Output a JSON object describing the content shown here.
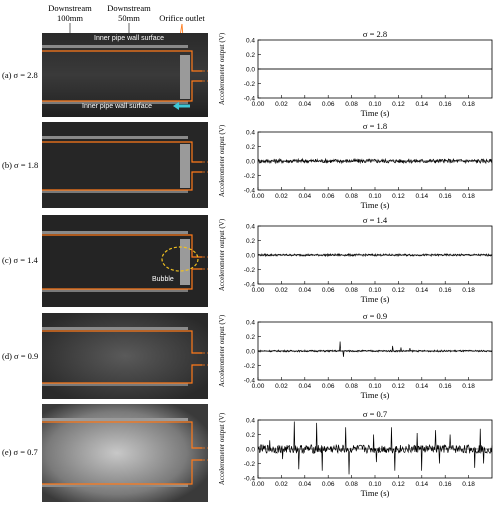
{
  "header": {
    "downstream_100": "Downstream\n100mm",
    "downstream_50": "Downstream\n50mm",
    "orifice_outlet": "Orifice outlet"
  },
  "photo_labels": {
    "inner_wall_top": "Inner pipe wall surface",
    "inner_wall_bottom": "Inner pipe wall surface",
    "bubble": "Bubble"
  },
  "rows": [
    {
      "label": "(a) σ = 2.8"
    },
    {
      "label": "(b) σ = 1.8"
    },
    {
      "label": "(c) σ = 1.4"
    },
    {
      "label": "(d) σ = 0.9"
    },
    {
      "label": "(e) σ = 0.7"
    }
  ],
  "chart_data": [
    {
      "type": "line",
      "title": "σ = 2.8",
      "xlabel": "Time (s)",
      "ylabel": "Accelerometer output (V)",
      "xlim": [
        0,
        0.2
      ],
      "ylim": [
        -0.4,
        0.4
      ],
      "xticks": [
        "0.00",
        "0.02",
        "0.04",
        "0.06",
        "0.08",
        "0.10",
        "0.12",
        "0.14",
        "0.16",
        "0.18"
      ],
      "yticks": [
        "0.4",
        "0.2",
        "0.0",
        "-0.2",
        "-0.4"
      ],
      "series": [
        {
          "amplitude": 0.0,
          "spikes": []
        }
      ]
    },
    {
      "type": "line",
      "title": "σ = 1.8",
      "xlabel": "Time (s)",
      "ylabel": "Accelerometer output (V)",
      "xlim": [
        0,
        0.2
      ],
      "ylim": [
        -0.4,
        0.4
      ],
      "xticks": [
        "0.00",
        "0.02",
        "0.04",
        "0.06",
        "0.08",
        "0.10",
        "0.12",
        "0.14",
        "0.16",
        "0.18"
      ],
      "yticks": [
        "0.4",
        "0.2",
        "0.0",
        "-0.2",
        "-0.4"
      ],
      "series": [
        {
          "amplitude": 0.03,
          "spikes": []
        }
      ]
    },
    {
      "type": "line",
      "title": "σ = 1.4",
      "xlabel": "Time (s)",
      "ylabel": "Accelerometer output (V)",
      "xlim": [
        0,
        0.2
      ],
      "ylim": [
        -0.4,
        0.4
      ],
      "xticks": [
        "0.00",
        "0.02",
        "0.04",
        "0.06",
        "0.08",
        "0.10",
        "0.12",
        "0.14",
        "0.16",
        "0.18"
      ],
      "yticks": [
        "0.4",
        "0.2",
        "0.0",
        "-0.2",
        "-0.4"
      ],
      "series": [
        {
          "amplitude": 0.015,
          "spikes": []
        }
      ]
    },
    {
      "type": "line",
      "title": "σ = 0.9",
      "xlabel": "Time (s)",
      "ylabel": "Accelerometer output (V)",
      "xlim": [
        0,
        0.2
      ],
      "ylim": [
        -0.4,
        0.4
      ],
      "xticks": [
        "0.00",
        "0.02",
        "0.04",
        "0.06",
        "0.08",
        "0.10",
        "0.12",
        "0.14",
        "0.16",
        "0.18"
      ],
      "yticks": [
        "0.4",
        "0.2",
        "0.0",
        "-0.2",
        "-0.4"
      ],
      "series": [
        {
          "amplitude": 0.012,
          "spikes": [
            [
              0.07,
              0.13
            ],
            [
              0.073,
              -0.08
            ],
            [
              0.115,
              0.07
            ],
            [
              0.122,
              0.05
            ],
            [
              0.13,
              0.04
            ]
          ]
        }
      ]
    },
    {
      "type": "line",
      "title": "σ = 0.7",
      "xlabel": "Time (s)",
      "ylabel": "Accelerometer output (V)",
      "xlim": [
        0,
        0.2
      ],
      "ylim": [
        -0.4,
        0.4
      ],
      "xticks": [
        "0.00",
        "0.02",
        "0.04",
        "0.06",
        "0.08",
        "0.10",
        "0.12",
        "0.14",
        "0.16",
        "0.18"
      ],
      "yticks": [
        "0.4",
        "0.2",
        "0.0",
        "-0.2",
        "-0.4"
      ],
      "series": [
        {
          "amplitude": 0.06,
          "spikes": [
            [
              0.01,
              0.12
            ],
            [
              0.021,
              -0.14
            ],
            [
              0.031,
              0.38
            ],
            [
              0.035,
              -0.28
            ],
            [
              0.05,
              0.36
            ],
            [
              0.055,
              -0.3
            ],
            [
              0.075,
              0.3
            ],
            [
              0.078,
              -0.35
            ],
            [
              0.099,
              0.2
            ],
            [
              0.101,
              -0.18
            ],
            [
              0.114,
              0.3
            ],
            [
              0.117,
              -0.3
            ],
            [
              0.136,
              0.22
            ],
            [
              0.14,
              -0.3
            ],
            [
              0.152,
              0.26
            ],
            [
              0.155,
              -0.2
            ],
            [
              0.164,
              0.2
            ],
            [
              0.185,
              -0.26
            ],
            [
              0.19,
              0.28
            ],
            [
              0.193,
              -0.2
            ]
          ]
        }
      ]
    }
  ]
}
